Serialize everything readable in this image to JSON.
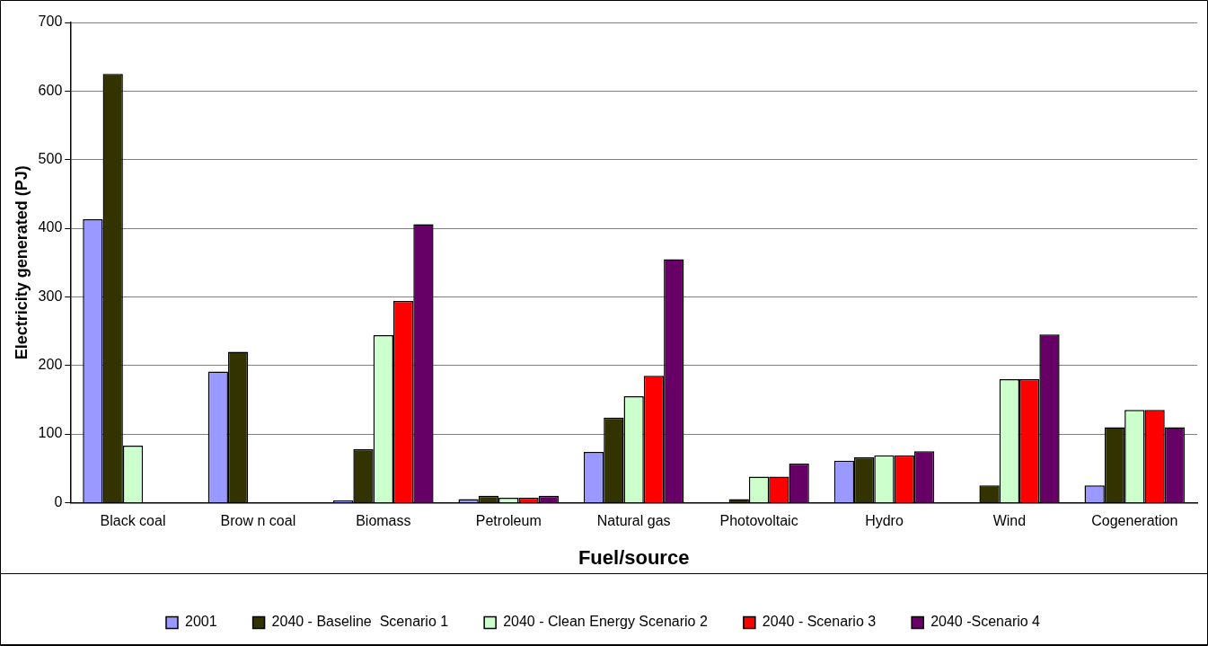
{
  "chart_data": {
    "type": "bar",
    "xlabel": "Fuel/source",
    "ylabel": "Electricity generated (PJ)",
    "categories": [
      "Black coal",
      "Brow n coal",
      "Biomass",
      "Petroleum",
      "Natural gas",
      "Photovoltaic",
      "Hydro",
      "Wind",
      "Cogeneration"
    ],
    "series": [
      {
        "name": "2001",
        "color": "#9999ff",
        "values": [
          413,
          191,
          3,
          5,
          74,
          0,
          61,
          0,
          25
        ]
      },
      {
        "name": "2040 - Baseline  Scenario 1",
        "color": "#333300",
        "values": [
          625,
          220,
          78,
          10,
          124,
          5,
          66,
          25,
          110
        ]
      },
      {
        "name": "2040 - Clean Energy Scenario 2",
        "color": "#ccffcc",
        "values": [
          83,
          0,
          244,
          7,
          155,
          38,
          69,
          180,
          135
        ]
      },
      {
        "name": "2040 - Scenario 3",
        "color": "#ff0000",
        "values": [
          0,
          0,
          294,
          7,
          185,
          38,
          69,
          180,
          135
        ]
      },
      {
        "name": "2040 -Scenario 4",
        "color": "#660066",
        "values": [
          0,
          0,
          406,
          10,
          355,
          57,
          75,
          245,
          110
        ]
      }
    ],
    "ylim": [
      0,
      700
    ],
    "yticks": [
      0,
      100,
      200,
      300,
      400,
      500,
      600,
      700
    ],
    "grid": "y",
    "legend": "bottom"
  }
}
